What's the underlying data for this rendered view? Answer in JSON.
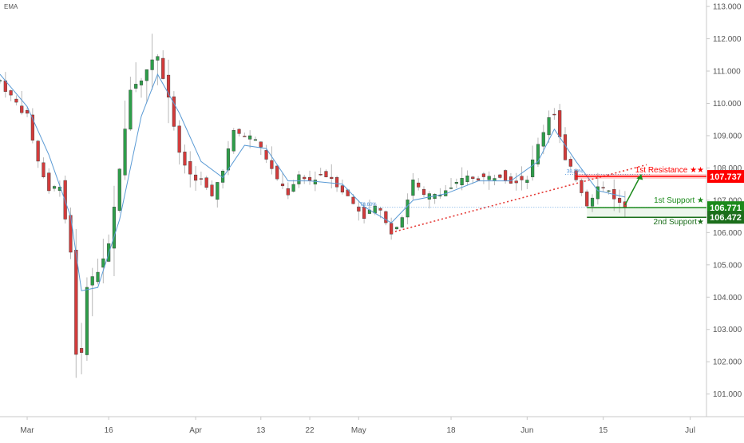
{
  "indicator_label": "EMA",
  "chart_data": {
    "type": "candlestick",
    "title": "",
    "y_axis": {
      "position": "right",
      "range": [
        100.3,
        113.2
      ],
      "tick_labels": [
        "113.000",
        "112.000",
        "111.000",
        "110.000",
        "109.000",
        "108.000",
        "107.000",
        "106.000",
        "105.000",
        "104.000",
        "103.000",
        "102.000",
        "101.000"
      ]
    },
    "x_axis": {
      "range": [
        "2020-02-25",
        "2020-07-04"
      ],
      "tick_labels": [
        "Mar",
        "16",
        "Apr",
        "13",
        "22",
        "May",
        "18",
        "Jun",
        "15",
        "Jul"
      ],
      "tick_dates": [
        "2020-03-01",
        "2020-03-16",
        "2020-04-01",
        "2020-04-13",
        "2020-04-22",
        "2020-05-01",
        "2020-05-18",
        "2020-06-01",
        "2020-06-15",
        "2020-07-01"
      ]
    },
    "series": [
      {
        "kind": "close",
        "points": [
          [
            "2020-02-25",
            110.7
          ],
          [
            "2020-02-27",
            110.2
          ],
          [
            "2020-03-01",
            109.6
          ],
          [
            "2020-03-03",
            108.2
          ],
          [
            "2020-03-05",
            107.3
          ],
          [
            "2020-03-07",
            107.5
          ],
          [
            "2020-03-09",
            105.4
          ],
          [
            "2020-03-10",
            102.3
          ],
          [
            "2020-03-11",
            102.2
          ],
          [
            "2020-03-12",
            104.4
          ],
          [
            "2020-03-14",
            104.8
          ],
          [
            "2020-03-16",
            105.6
          ],
          [
            "2020-03-18",
            107.9
          ],
          [
            "2020-03-20",
            110.5
          ],
          [
            "2020-03-22",
            110.8
          ],
          [
            "2020-03-24",
            111.3
          ],
          [
            "2020-03-25",
            111.5
          ],
          [
            "2020-03-27",
            110.2
          ],
          [
            "2020-03-29",
            108.4
          ],
          [
            "2020-03-31",
            107.8
          ],
          [
            "2020-04-02",
            107.6
          ],
          [
            "2020-04-04",
            107.1
          ],
          [
            "2020-04-06",
            108.0
          ],
          [
            "2020-04-08",
            109.1
          ],
          [
            "2020-04-10",
            109.0
          ],
          [
            "2020-04-12",
            108.9
          ],
          [
            "2020-04-14",
            108.3
          ],
          [
            "2020-04-16",
            107.6
          ],
          [
            "2020-04-18",
            107.2
          ],
          [
            "2020-04-20",
            107.7
          ],
          [
            "2020-04-22",
            107.6
          ],
          [
            "2020-04-24",
            107.8
          ],
          [
            "2020-04-26",
            107.7
          ],
          [
            "2020-04-28",
            107.3
          ],
          [
            "2020-04-30",
            106.9
          ],
          [
            "2020-05-02",
            106.5
          ],
          [
            "2020-05-04",
            106.8
          ],
          [
            "2020-05-06",
            106.4
          ],
          [
            "2020-05-07",
            106.0
          ],
          [
            "2020-05-09",
            106.5
          ],
          [
            "2020-05-11",
            107.6
          ],
          [
            "2020-05-13",
            107.1
          ],
          [
            "2020-05-15",
            107.2
          ],
          [
            "2020-05-17",
            107.3
          ],
          [
            "2020-05-19",
            107.5
          ],
          [
            "2020-05-21",
            107.7
          ],
          [
            "2020-05-23",
            107.7
          ],
          [
            "2020-05-25",
            107.7
          ],
          [
            "2020-05-27",
            107.8
          ],
          [
            "2020-05-29",
            107.6
          ],
          [
            "2020-06-01",
            107.7
          ],
          [
            "2020-06-03",
            108.7
          ],
          [
            "2020-06-05",
            109.6
          ],
          [
            "2020-06-06",
            109.7
          ],
          [
            "2020-06-08",
            108.2
          ],
          [
            "2020-06-10",
            107.7
          ],
          [
            "2020-06-12",
            106.9
          ],
          [
            "2020-06-14",
            107.4
          ],
          [
            "2020-06-16",
            107.3
          ],
          [
            "2020-06-18",
            106.9
          ],
          [
            "2020-06-19",
            106.8
          ]
        ]
      },
      {
        "name": "EMA",
        "kind": "ema",
        "color": "#5b9bd5",
        "points": [
          [
            "2020-02-25",
            110.9
          ],
          [
            "2020-03-01",
            109.9
          ],
          [
            "2020-03-05",
            108.4
          ],
          [
            "2020-03-09",
            106.5
          ],
          [
            "2020-03-11",
            104.2
          ],
          [
            "2020-03-14",
            104.3
          ],
          [
            "2020-03-18",
            106.4
          ],
          [
            "2020-03-22",
            109.6
          ],
          [
            "2020-03-25",
            110.9
          ],
          [
            "2020-03-29",
            109.7
          ],
          [
            "2020-04-02",
            108.2
          ],
          [
            "2020-04-06",
            107.7
          ],
          [
            "2020-04-10",
            108.7
          ],
          [
            "2020-04-14",
            108.6
          ],
          [
            "2020-04-18",
            107.6
          ],
          [
            "2020-04-22",
            107.6
          ],
          [
            "2020-04-28",
            107.5
          ],
          [
            "2020-05-02",
            106.8
          ],
          [
            "2020-05-07",
            106.3
          ],
          [
            "2020-05-11",
            107.0
          ],
          [
            "2020-05-17",
            107.2
          ],
          [
            "2020-05-23",
            107.6
          ],
          [
            "2020-05-29",
            107.6
          ],
          [
            "2020-06-03",
            108.2
          ],
          [
            "2020-06-06",
            109.2
          ],
          [
            "2020-06-10",
            108.2
          ],
          [
            "2020-06-14",
            107.3
          ],
          [
            "2020-06-19",
            107.1
          ]
        ]
      }
    ],
    "annotations": {
      "resistance": {
        "label": "1st Resistance ★★",
        "value": 107.737,
        "price_tag": "107.737",
        "color": "#ff0000",
        "from": "2020-06-10"
      },
      "support1": {
        "label": "1st Support ★",
        "value": 106.771,
        "price_tag": "106.771",
        "color": "#1b8a1b",
        "from": "2020-06-12"
      },
      "support2": {
        "label": "2nd Support★",
        "value": 106.472,
        "price_tag": "106.472",
        "color": "#1b6e1b",
        "from": "2020-06-12"
      },
      "fib_upper": {
        "label": "38.20%",
        "value": 107.8,
        "from": "2020-06-08"
      },
      "fib_lower": {
        "label": "78.60%",
        "value": 106.78,
        "from": "2020-05-01"
      },
      "trendline": {
        "color": "#e53935",
        "points": [
          [
            "2020-05-07",
            106.0
          ],
          [
            "2020-06-23",
            108.1
          ]
        ]
      },
      "projection": {
        "color": "#1b8a1b",
        "points": [
          [
            "2020-06-19",
            106.85
          ],
          [
            "2020-06-22",
            107.8
          ]
        ]
      }
    },
    "grid": false,
    "legend": "none"
  }
}
